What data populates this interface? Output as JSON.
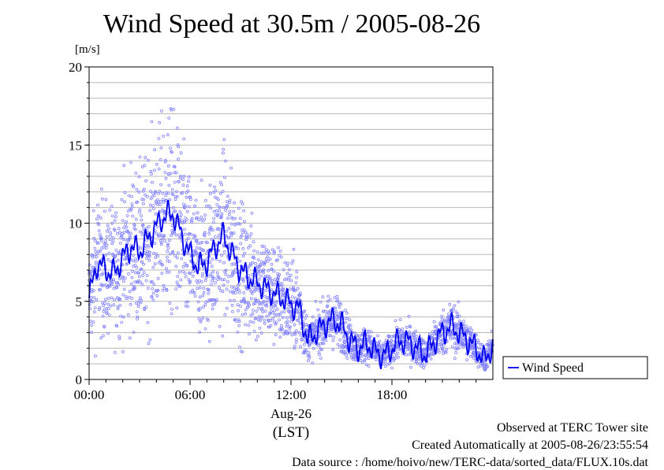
{
  "title": "Wind Speed at 30.5m / 2005-08-26",
  "footer": {
    "observed": "Observed at TERC Tower site",
    "created": "Created Automatically at 2005-08-26/23:55:54",
    "source": "Data source : /home/hoivo/new/TERC-data/sorted_data/FLUX.10s.dat"
  },
  "chart_data": {
    "type": "line",
    "ylabel": "[m/s]",
    "xlabel": "(LST)",
    "date_label": "Aug-26",
    "ylim": [
      0,
      20
    ],
    "xlim": [
      "00:00",
      "24:00"
    ],
    "yticks": [
      "0",
      "5",
      "10",
      "15",
      "20"
    ],
    "xticks": [
      "00:00",
      "06:00",
      "12:00",
      "18:00"
    ],
    "grid": true,
    "legend_position": "right",
    "colors": {
      "line": "#0000ee",
      "scatter": "#8080ff"
    },
    "series": [
      {
        "name": "Wind Speed",
        "x_hours": [
          0.0,
          0.5,
          1.0,
          1.5,
          2.0,
          2.5,
          3.0,
          3.5,
          4.0,
          4.5,
          5.0,
          5.5,
          6.0,
          6.5,
          7.0,
          7.5,
          8.0,
          8.5,
          9.0,
          9.5,
          10.0,
          10.5,
          11.0,
          11.5,
          12.0,
          12.5,
          13.0,
          13.5,
          14.0,
          14.5,
          15.0,
          15.5,
          16.0,
          16.5,
          17.0,
          17.5,
          18.0,
          18.5,
          19.0,
          19.5,
          20.0,
          20.5,
          21.0,
          21.5,
          22.0,
          22.5,
          23.0,
          23.5,
          23.9
        ],
        "values": [
          5.2,
          7.5,
          7.0,
          6.8,
          7.8,
          8.5,
          8.2,
          9.0,
          9.8,
          10.5,
          10.6,
          9.2,
          8.0,
          7.2,
          7.5,
          8.5,
          9.2,
          8.0,
          7.0,
          6.5,
          6.2,
          5.8,
          5.5,
          5.2,
          4.8,
          4.5,
          2.5,
          3.0,
          3.5,
          3.8,
          3.5,
          2.5,
          2.0,
          2.3,
          1.8,
          1.5,
          2.0,
          2.5,
          2.4,
          2.0,
          1.6,
          2.4,
          3.0,
          3.4,
          3.0,
          2.5,
          2.0,
          1.2,
          2.0
        ]
      }
    ]
  }
}
